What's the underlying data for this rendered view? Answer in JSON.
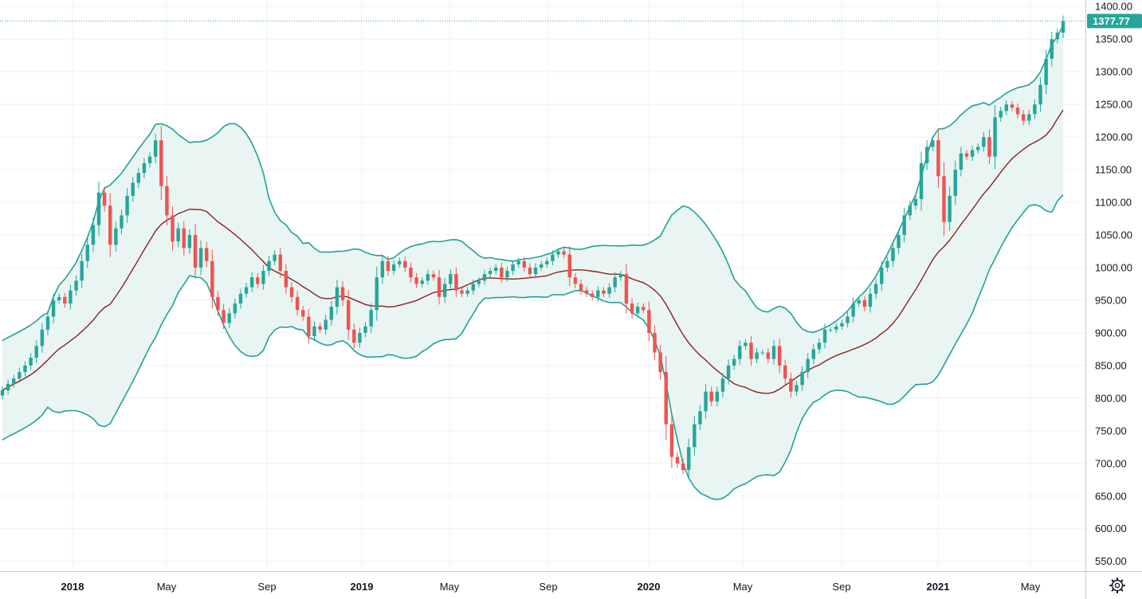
{
  "chart_data": {
    "type": "candlestick",
    "title": "",
    "interval": "weekly",
    "indicator": "Bollinger Bands (20, 2)",
    "colors": {
      "up": "#26a69a",
      "down": "#ef5350",
      "basis": "#8d1f1f",
      "bands": "#22a198",
      "band_fill": "#e8f5f3",
      "grid": "#eef0f3",
      "last_price": "#26a69a"
    },
    "last_price": 1377.77,
    "last_price_label": "1377.77",
    "y_axis": {
      "range": [
        535,
        1410
      ],
      "ticks": [
        "1400.00",
        "1350.00",
        "1300.00",
        "1250.00",
        "1200.00",
        "1150.00",
        "1100.00",
        "1050.00",
        "1000.00",
        "950.00",
        "900.00",
        "850.00",
        "800.00",
        "750.00",
        "700.00",
        "650.00",
        "600.00",
        "550.00"
      ]
    },
    "x_axis": {
      "labels": [
        {
          "text": "2018",
          "t": 0,
          "year": true
        },
        {
          "text": "May",
          "t": 1,
          "year": false
        },
        {
          "text": "Sep",
          "t": 2,
          "year": false
        },
        {
          "text": "2019",
          "t": 3,
          "year": true
        },
        {
          "text": "May",
          "t": 4,
          "year": false
        },
        {
          "text": "Sep",
          "t": 5,
          "year": false
        },
        {
          "text": "2020",
          "t": 6,
          "year": true
        },
        {
          "text": "May",
          "t": 7,
          "year": false
        },
        {
          "text": "Sep",
          "t": 8,
          "year": false
        },
        {
          "text": "2021",
          "t": 9,
          "year": true
        },
        {
          "text": "May",
          "t": 10,
          "year": false
        }
      ]
    },
    "closes": [
      812,
      822,
      830,
      840,
      850,
      862,
      880,
      905,
      925,
      950,
      955,
      945,
      965,
      980,
      1010,
      1035,
      1065,
      1115,
      1095,
      1035,
      1060,
      1080,
      1110,
      1130,
      1145,
      1160,
      1170,
      1195,
      1125,
      1080,
      1040,
      1060,
      1030,
      1050,
      1000,
      1030,
      1010,
      955,
      935,
      915,
      930,
      945,
      960,
      970,
      985,
      975,
      995,
      1010,
      1020,
      995,
      970,
      955,
      935,
      925,
      895,
      910,
      905,
      920,
      940,
      970,
      950,
      905,
      885,
      900,
      910,
      935,
      985,
      1010,
      995,
      1005,
      1010,
      1000,
      985,
      975,
      980,
      990,
      985,
      955,
      975,
      990,
      965,
      960,
      965,
      975,
      980,
      990,
      995,
      1000,
      985,
      995,
      1005,
      1010,
      1000,
      990,
      1000,
      1005,
      1010,
      1020,
      1025,
      1020,
      985,
      975,
      965,
      960,
      955,
      965,
      960,
      970,
      985,
      990,
      945,
      930,
      940,
      935,
      900,
      870,
      840,
      760,
      710,
      700,
      690,
      725,
      760,
      780,
      810,
      795,
      810,
      830,
      850,
      860,
      880,
      885,
      860,
      870,
      870,
      860,
      880,
      850,
      830,
      810,
      820,
      840,
      860,
      875,
      885,
      905,
      905,
      910,
      915,
      925,
      945,
      950,
      940,
      960,
      975,
      1000,
      1010,
      1030,
      1050,
      1080,
      1095,
      1105,
      1160,
      1185,
      1195,
      1140,
      1070,
      1110,
      1150,
      1175,
      1170,
      1180,
      1185,
      1200,
      1170,
      1230,
      1240,
      1250,
      1245,
      1235,
      1225,
      1235,
      1250,
      1280,
      1320,
      1350,
      1360,
      1377.77
    ]
  }
}
